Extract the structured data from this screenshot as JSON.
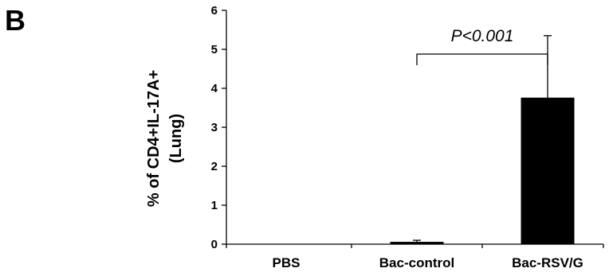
{
  "panel_label": "B",
  "chart_data": {
    "type": "bar",
    "categories": [
      "PBS",
      "Bac-control",
      "Bac-RSV/G"
    ],
    "values": [
      0,
      0.05,
      3.75
    ],
    "errors": [
      0,
      0.05,
      1.6
    ],
    "ylabel_lines": [
      "% of CD4+IL-17A+",
      "(Lung)"
    ],
    "ylim": [
      0,
      6
    ],
    "yticks": [
      "0",
      "1",
      "2",
      "3",
      "4",
      "5",
      "6"
    ],
    "bar_color": "#000000",
    "grid": false,
    "legend": "none",
    "annotation": {
      "text": "P<0.001",
      "between": [
        "Bac-control",
        "Bac-RSV/G"
      ]
    }
  }
}
